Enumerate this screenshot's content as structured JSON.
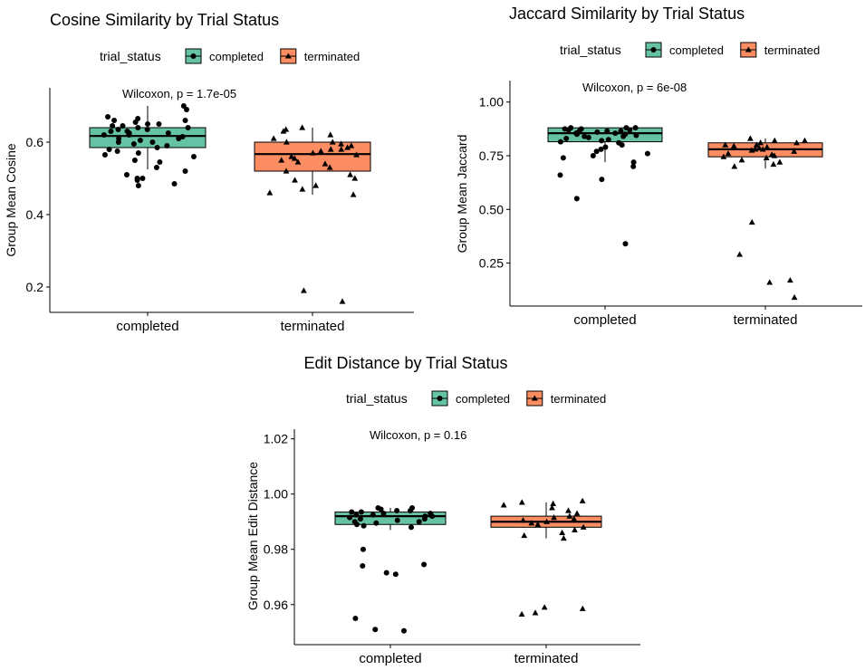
{
  "colors": {
    "completed": "#66C2A5",
    "terminated": "#FC8D62",
    "axis": "#000000",
    "point": "#000000"
  },
  "legend_title": "trial_status",
  "legend_labels": [
    "completed",
    "terminated"
  ],
  "chart_data": [
    {
      "type": "box",
      "title": "Cosine Similarity by Trial Status",
      "xlabel": "",
      "ylabel": "Group Mean Cosine",
      "categories": [
        "completed",
        "terminated"
      ],
      "ylim": [
        0.13,
        0.75
      ],
      "yticks": [
        0.2,
        0.4,
        0.6
      ],
      "ytick_labels": [
        "0.2",
        "0.4",
        "0.6"
      ],
      "annotation": "Wilcoxon, p = 1.7e-05",
      "boxes": [
        {
          "name": "completed",
          "q1": 0.585,
          "median": 0.617,
          "q3": 0.64,
          "whisker_low": 0.525,
          "whisker_high": 0.7
        },
        {
          "name": "terminated",
          "q1": 0.52,
          "median": 0.567,
          "q3": 0.6,
          "whisker_low": 0.455,
          "whisker_high": 0.64
        }
      ],
      "points": {
        "completed": [
          0.7,
          0.69,
          0.67,
          0.665,
          0.66,
          0.66,
          0.655,
          0.65,
          0.65,
          0.645,
          0.645,
          0.64,
          0.64,
          0.635,
          0.635,
          0.63,
          0.63,
          0.625,
          0.625,
          0.62,
          0.62,
          0.615,
          0.61,
          0.61,
          0.605,
          0.6,
          0.6,
          0.595,
          0.59,
          0.585,
          0.58,
          0.575,
          0.57,
          0.565,
          0.56,
          0.55,
          0.545,
          0.53,
          0.52,
          0.51,
          0.5,
          0.5,
          0.495,
          0.485,
          0.48
        ],
        "terminated": [
          0.64,
          0.635,
          0.63,
          0.62,
          0.61,
          0.6,
          0.6,
          0.595,
          0.59,
          0.585,
          0.58,
          0.58,
          0.575,
          0.57,
          0.565,
          0.56,
          0.555,
          0.55,
          0.545,
          0.54,
          0.53,
          0.52,
          0.51,
          0.5,
          0.495,
          0.48,
          0.47,
          0.46,
          0.455,
          0.19,
          0.16
        ]
      }
    },
    {
      "type": "box",
      "title": "Jaccard Similarity by Trial Status",
      "xlabel": "",
      "ylabel": "Group Mean Jaccard",
      "categories": [
        "completed",
        "terminated"
      ],
      "ylim": [
        0.05,
        1.1
      ],
      "yticks": [
        0.25,
        0.5,
        0.75,
        1.0
      ],
      "ytick_labels": [
        "0.25",
        "0.50",
        "0.75",
        "1.00"
      ],
      "annotation": "Wilcoxon, p = 6e-08",
      "boxes": [
        {
          "name": "completed",
          "q1": 0.815,
          "median": 0.855,
          "q3": 0.88,
          "whisker_low": 0.72,
          "whisker_high": 0.88
        },
        {
          "name": "terminated",
          "q1": 0.745,
          "median": 0.78,
          "q3": 0.81,
          "whisker_low": 0.69,
          "whisker_high": 0.83
        }
      ],
      "points": {
        "completed": [
          0.88,
          0.88,
          0.88,
          0.875,
          0.875,
          0.87,
          0.87,
          0.87,
          0.865,
          0.865,
          0.86,
          0.86,
          0.855,
          0.855,
          0.85,
          0.85,
          0.845,
          0.84,
          0.84,
          0.835,
          0.83,
          0.825,
          0.82,
          0.815,
          0.81,
          0.8,
          0.79,
          0.78,
          0.77,
          0.76,
          0.75,
          0.74,
          0.72,
          0.7,
          0.66,
          0.64,
          0.55,
          0.34
        ],
        "terminated": [
          0.83,
          0.82,
          0.82,
          0.81,
          0.81,
          0.8,
          0.8,
          0.795,
          0.79,
          0.785,
          0.78,
          0.78,
          0.775,
          0.77,
          0.76,
          0.755,
          0.75,
          0.745,
          0.74,
          0.73,
          0.72,
          0.71,
          0.7,
          0.44,
          0.29,
          0.17,
          0.16,
          0.09
        ]
      }
    },
    {
      "type": "box",
      "title": "Edit Distance by Trial Status",
      "xlabel": "",
      "ylabel": "Group Mean Edit Distance",
      "categories": [
        "completed",
        "terminated"
      ],
      "ylim": [
        0.9455,
        1.0235
      ],
      "yticks": [
        0.96,
        0.98,
        1.0,
        1.02
      ],
      "ytick_labels": [
        "0.96",
        "0.98",
        "1.00",
        "1.02"
      ],
      "annotation": "Wilcoxon, p = 0.16",
      "boxes": [
        {
          "name": "completed",
          "q1": 0.989,
          "median": 0.992,
          "q3": 0.9935,
          "whisker_low": 0.987,
          "whisker_high": 0.995
        },
        {
          "name": "terminated",
          "q1": 0.988,
          "median": 0.99,
          "q3": 0.992,
          "whisker_low": 0.984,
          "whisker_high": 0.997
        }
      ],
      "points": {
        "completed": [
          0.995,
          0.995,
          0.9945,
          0.994,
          0.994,
          0.9935,
          0.9935,
          0.993,
          0.993,
          0.9925,
          0.9925,
          0.992,
          0.992,
          0.9915,
          0.991,
          0.991,
          0.9905,
          0.99,
          0.99,
          0.9895,
          0.989,
          0.9885,
          0.988,
          0.98,
          0.9745,
          0.974,
          0.9715,
          0.971,
          0.955,
          0.951,
          0.9505
        ],
        "terminated": [
          0.9975,
          0.997,
          0.9965,
          0.996,
          0.995,
          0.994,
          0.993,
          0.992,
          0.9915,
          0.991,
          0.9905,
          0.99,
          0.9895,
          0.989,
          0.988,
          0.987,
          0.986,
          0.985,
          0.984,
          0.959,
          0.9585,
          0.957,
          0.9565
        ]
      }
    }
  ]
}
